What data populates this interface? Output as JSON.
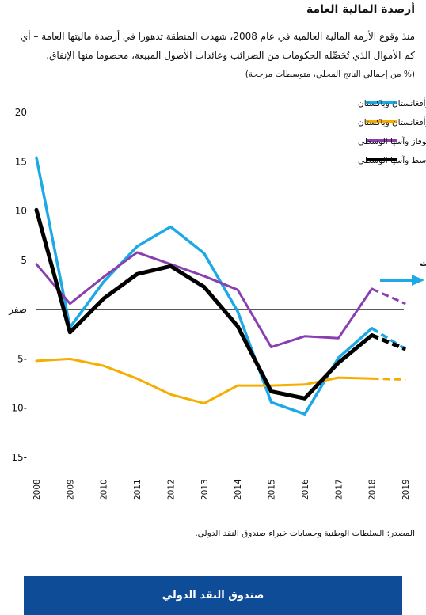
{
  "title": "أرصدة المالية العامة",
  "subtitle": "منذ وقوع الأزمة المالية العالمية في عام 2008، شهدت المنطقة تدهورا في أرصدة ماليتها العامة – أي كم الأموال الذي تُحَصِّله الحكومات من الضرائب وعائدات الأصول المبيعة، مخصوما منها الإنفاق.",
  "units_note": "(% من إجمالي الناتج المحلي، متوسطات مرجحة)",
  "source": "المصدر: السلطات الوطنية وحسابات خبراء صندوق النقد الدولي.",
  "footer_label": "صندوق النقد الدولي",
  "chart_data": {
    "type": "line",
    "x": [
      "2008",
      "2009",
      "2010",
      "2011",
      "2012",
      "2013",
      "2014",
      "2015",
      "2016",
      "2017",
      "2018",
      "2019"
    ],
    "ylim": [
      -15,
      20
    ],
    "yticks": [
      {
        "value": 20,
        "label": "20"
      },
      {
        "value": 15,
        "label": "15"
      },
      {
        "value": 10,
        "label": "10"
      },
      {
        "value": 5,
        "label": "5"
      },
      {
        "value": 0,
        "label": "صفر"
      },
      {
        "value": -5,
        "label": "5-"
      },
      {
        "value": -10,
        "label": "10-"
      },
      {
        "value": -15,
        "label": "15-"
      }
    ],
    "grid": false,
    "legend_position": "top-right",
    "forecast_label": "التوقعات",
    "forecast_from": "2018",
    "forecast_arrow_color": "#1ca9e6",
    "series": [
      {
        "name": "البلدان المصدرة للنفط في منطقة الشرق الأوسط وشمال إفريقيا وأفغانستان وباكستان",
        "color": "#1ca9e6",
        "values": [
          15.4,
          -1.8,
          2.8,
          6.4,
          8.4,
          5.7,
          -0.2,
          -9.4,
          -10.6,
          -4.9,
          -1.9,
          -4.0
        ]
      },
      {
        "name": "البلدان المستوردة للنفط في منطقة الشرق الأوسط وشمال إفريقيا وأفغانستان وباكستان",
        "color": "#f5ad00",
        "values": [
          -5.2,
          -5.0,
          -5.7,
          -7.0,
          -8.6,
          -9.5,
          -7.7,
          -7.7,
          -7.6,
          -6.9,
          -7.0,
          -7.1
        ]
      },
      {
        "name": "القوقاز وآسيا الوسطى",
        "color": "#8a3fb0",
        "values": [
          4.6,
          0.6,
          3.3,
          5.8,
          4.6,
          3.4,
          2.0,
          -3.8,
          -2.7,
          -2.9,
          2.1,
          0.6
        ]
      },
      {
        "name": "الشرق الأوسط وآسيا الوسطى",
        "color": "#000000",
        "values": [
          10.1,
          -2.3,
          1.1,
          3.6,
          4.4,
          2.3,
          -1.7,
          -8.3,
          -9.0,
          -5.4,
          -2.6,
          -4.0
        ]
      }
    ]
  }
}
